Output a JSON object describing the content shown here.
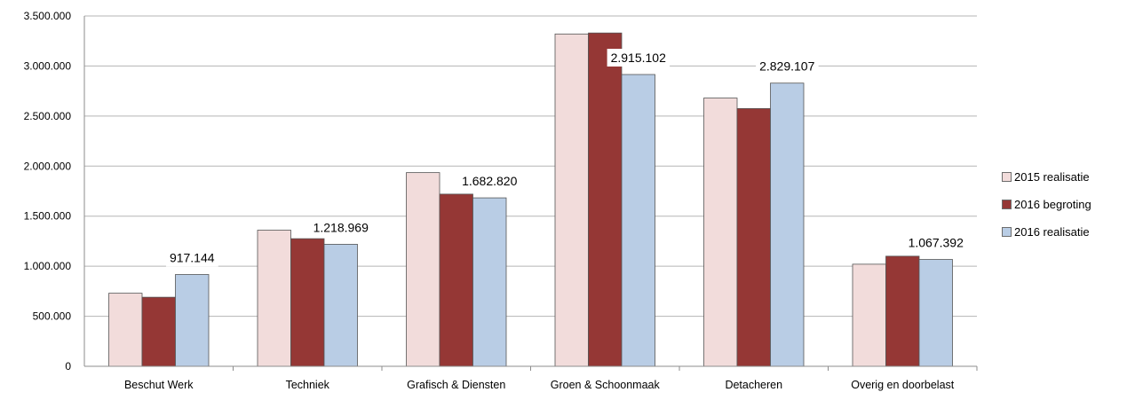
{
  "chart_data": {
    "type": "bar",
    "categories": [
      "Beschut Werk",
      "Techniek",
      "Grafisch & Diensten",
      "Groen & Schoonmaak",
      "Detacheren",
      "Overig en doorbelast"
    ],
    "series": [
      {
        "name": "2015 realisatie",
        "color": "#f2dcdb",
        "values": [
          730000,
          1360000,
          1935000,
          3320000,
          2680000,
          1020000
        ]
      },
      {
        "name": "2016 begroting",
        "color": "#953735",
        "values": [
          690000,
          1275000,
          1720000,
          3330000,
          2575000,
          1100000
        ]
      },
      {
        "name": "2016 realisatie",
        "color": "#b9cde5",
        "values": [
          917144,
          1218969,
          1682820,
          2915102,
          2829107,
          1067392
        ]
      }
    ],
    "data_labels": [
      "917.144",
      "1.218.969",
      "1.682.820",
      "2.915.102",
      "2.829.107",
      "1.067.392"
    ],
    "ylim": [
      0,
      3500000
    ],
    "ytick_values": [
      0,
      500000,
      1000000,
      1500000,
      2000000,
      2500000,
      3000000,
      3500000
    ],
    "ytick_labels": [
      "0",
      "500.000",
      "1.000.000",
      "1.500.000",
      "2.000.000",
      "2.500.000",
      "3.000.000",
      "3.500.000"
    ],
    "grid": true,
    "legend_position": "right",
    "title": "",
    "xlabel": "",
    "ylabel": ""
  }
}
